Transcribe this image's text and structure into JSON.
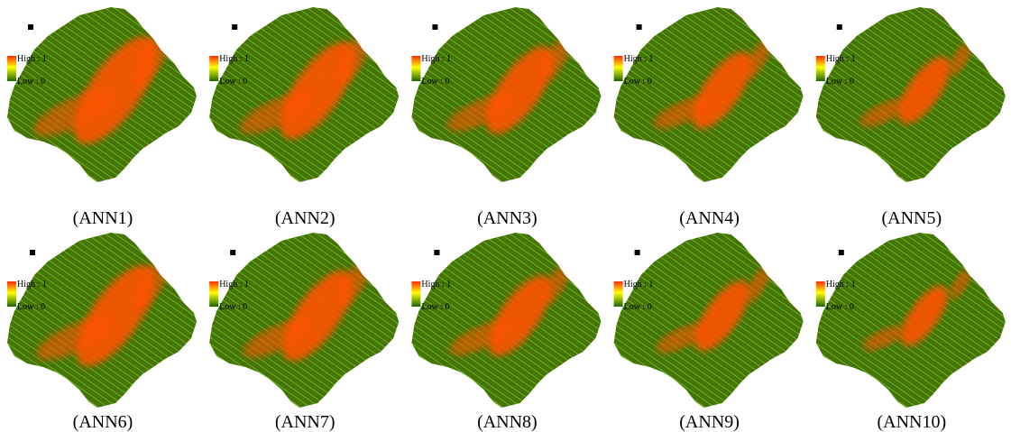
{
  "panels": [
    {
      "caption": "(ANN1)",
      "legend_high": "High : 1",
      "legend_low": "Low : 0"
    },
    {
      "caption": "(ANN2)",
      "legend_high": "High : 1",
      "legend_low": "Low : 0"
    },
    {
      "caption": "(ANN3)",
      "legend_high": "High : 1",
      "legend_low": "Low : 0"
    },
    {
      "caption": "(ANN4)",
      "legend_high": "High : 1",
      "legend_low": "Low : 0"
    },
    {
      "caption": "(ANN5)",
      "legend_high": "High : 1",
      "legend_low": "Low : 0"
    },
    {
      "caption": "(ANN6)",
      "legend_high": "High : 1",
      "legend_low": "Low : 0"
    },
    {
      "caption": "(ANN7)",
      "legend_high": "High : 1",
      "legend_low": "Low : 0"
    },
    {
      "caption": "(ANN8)",
      "legend_high": "High : 1",
      "legend_low": "Low : 0"
    },
    {
      "caption": "(ANN9)",
      "legend_high": "High : 1",
      "legend_low": "Low : 0"
    },
    {
      "caption": "(ANN10)",
      "legend_high": "High : 1",
      "legend_low": "Low : 0"
    }
  ]
}
